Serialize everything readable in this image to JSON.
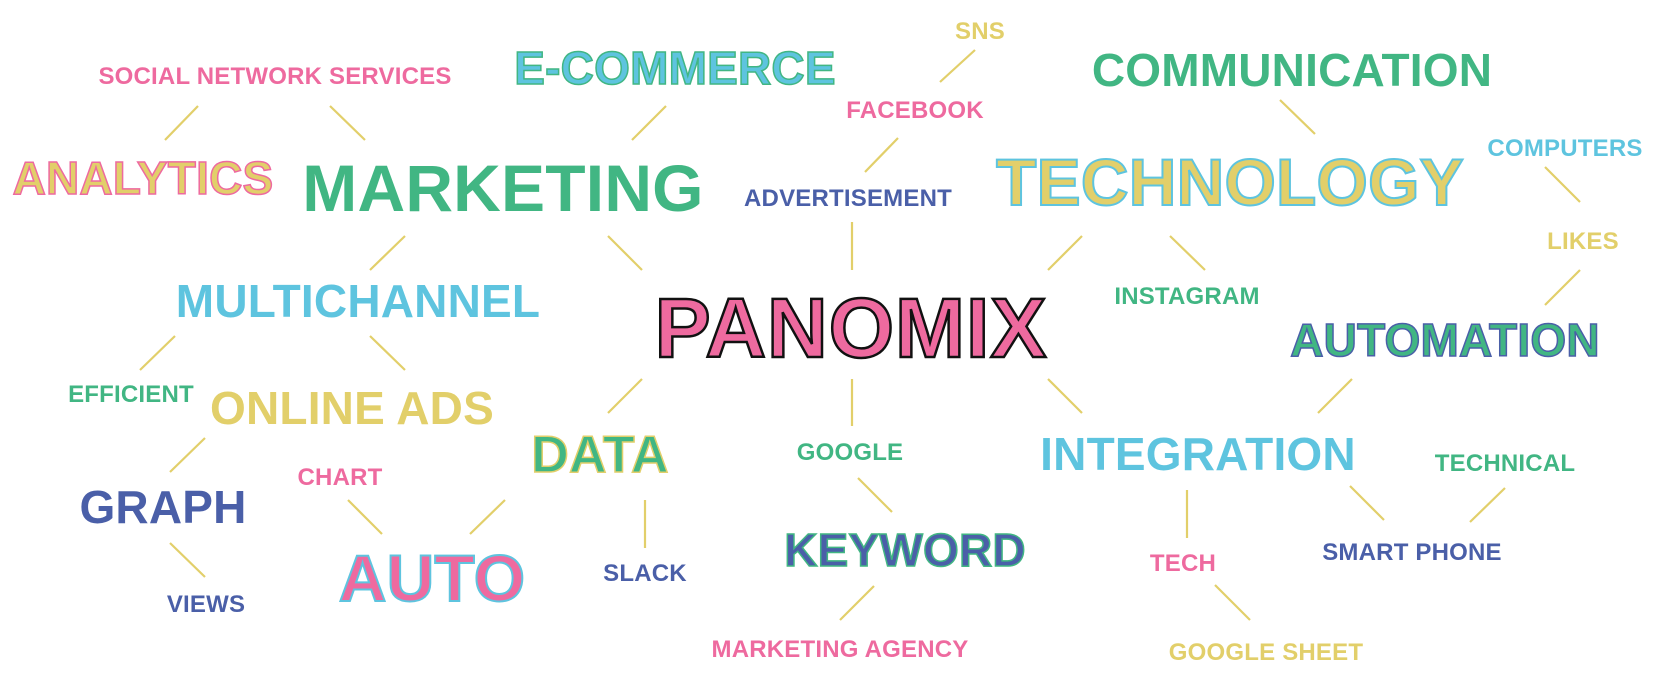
{
  "colors": {
    "pink": "#ee6a9f",
    "green": "#41b683",
    "cyan": "#5ec4df",
    "yellow": "#e2cf6a",
    "navy": "#4a5fa8",
    "black": "#111111",
    "connector": "#e2cf6a"
  },
  "diagram": {
    "center": "PANOMIX",
    "words": {
      "sns": "SNS",
      "social_network_services": "SOCIAL NETWORK SERVICES",
      "ecommerce": "E-COMMERCE",
      "communication": "COMMUNICATION",
      "facebook": "FACEBOOK",
      "computers": "COMPUTERS",
      "analytics": "ANALYTICS",
      "marketing": "MARKETING",
      "advertisement": "ADVERTISEMENT",
      "technology": "TECHNOLOGY",
      "likes": "LIKES",
      "multichannel": "MULTICHANNEL",
      "instagram": "INSTAGRAM",
      "automation": "AUTOMATION",
      "efficient": "EFFICIENT",
      "online_ads": "ONLINE ADS",
      "data": "DATA",
      "google": "GOOGLE",
      "integration": "INTEGRATION",
      "technical": "TECHNICAL",
      "chart": "CHART",
      "graph": "GRAPH",
      "keyword": "KEYWORD",
      "auto": "AUTO",
      "slack": "SLACK",
      "tech": "TECH",
      "smart_phone": "SMART PHONE",
      "views": "VIEWS",
      "marketing_agency": "MARKETING AGENCY",
      "google_sheet": "GOOGLE SHEET"
    }
  }
}
